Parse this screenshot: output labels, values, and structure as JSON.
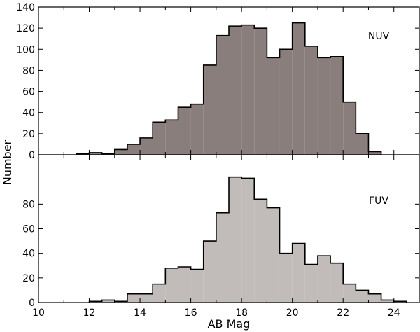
{
  "chart_data": [
    {
      "type": "bar",
      "panel_label": "NUV",
      "bin_width": 0.5,
      "x": [
        11.75,
        12.25,
        12.75,
        13.25,
        13.75,
        14.25,
        14.75,
        15.25,
        15.75,
        16.25,
        16.75,
        17.25,
        17.75,
        18.25,
        18.75,
        19.25,
        19.75,
        20.25,
        20.75,
        21.25,
        21.75,
        22.25,
        22.75,
        23.25
      ],
      "values": [
        1,
        2,
        1,
        5,
        10,
        16,
        31,
        33,
        45,
        48,
        85,
        113,
        122,
        123,
        120,
        92,
        100,
        125,
        103,
        92,
        93,
        50,
        20,
        3
      ],
      "color": "#8a7e7c",
      "xlim": [
        10,
        25
      ],
      "ylim": [
        0,
        140
      ],
      "yticks": [
        0,
        20,
        40,
        60,
        80,
        100,
        120,
        140
      ]
    },
    {
      "type": "bar",
      "panel_label": "FUV",
      "bin_width": 0.5,
      "x": [
        12.25,
        12.75,
        13.25,
        13.75,
        14.25,
        14.75,
        15.25,
        15.75,
        16.25,
        16.75,
        17.25,
        17.75,
        18.25,
        18.75,
        19.25,
        19.75,
        20.25,
        20.75,
        21.25,
        21.75,
        22.25,
        22.75,
        23.25,
        23.75,
        24.25
      ],
      "values": [
        1,
        2,
        1,
        7,
        7,
        15,
        28,
        29,
        27,
        50,
        73,
        102,
        101,
        84,
        77,
        40,
        48,
        31,
        38,
        32,
        15,
        10,
        7,
        2,
        1
      ],
      "color": "#c1bbba",
      "xlim": [
        10,
        25
      ],
      "ylim": [
        0,
        120
      ],
      "yticks": [
        0,
        20,
        40,
        60,
        80
      ],
      "xticks": [
        10,
        12,
        14,
        16,
        18,
        20,
        22,
        24
      ],
      "xlabel": "AB Mag"
    }
  ],
  "ylabel": "Number"
}
